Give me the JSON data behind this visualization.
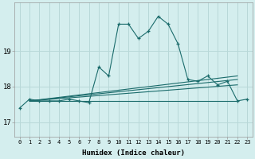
{
  "title": "",
  "xlabel": "Humidex (Indice chaleur)",
  "background_color": "#d4eeee",
  "grid_color": "#b8d8d8",
  "line_color": "#1a6b6b",
  "x_ticks": [
    0,
    1,
    2,
    3,
    4,
    5,
    6,
    7,
    8,
    9,
    10,
    11,
    12,
    13,
    14,
    15,
    16,
    17,
    18,
    19,
    20,
    21,
    22,
    23
  ],
  "y_ticks": [
    17,
    18,
    19
  ],
  "xlim": [
    -0.5,
    23.5
  ],
  "ylim": [
    16.6,
    20.35
  ],
  "series": [
    [
      0,
      17.4
    ],
    [
      1,
      17.65
    ],
    [
      2,
      17.6
    ],
    [
      3,
      17.6
    ],
    [
      4,
      17.6
    ],
    [
      5,
      17.65
    ],
    [
      6,
      17.6
    ],
    [
      7,
      17.55
    ],
    [
      8,
      18.55
    ],
    [
      9,
      18.3
    ],
    [
      10,
      19.75
    ],
    [
      11,
      19.75
    ],
    [
      12,
      19.35
    ],
    [
      13,
      19.55
    ],
    [
      14,
      19.97
    ],
    [
      15,
      19.75
    ],
    [
      16,
      19.2
    ],
    [
      17,
      18.2
    ],
    [
      18,
      18.15
    ],
    [
      19,
      18.3
    ],
    [
      20,
      18.05
    ],
    [
      21,
      18.15
    ],
    [
      22,
      17.6
    ],
    [
      23,
      17.65
    ]
  ],
  "trend_lines": [
    [
      [
        1,
        17.6
      ],
      [
        22,
        17.6
      ]
    ],
    [
      [
        1,
        17.6
      ],
      [
        22,
        18.05
      ]
    ],
    [
      [
        1,
        17.6
      ],
      [
        22,
        18.2
      ]
    ],
    [
      [
        1,
        17.6
      ],
      [
        22,
        18.3
      ]
    ]
  ]
}
